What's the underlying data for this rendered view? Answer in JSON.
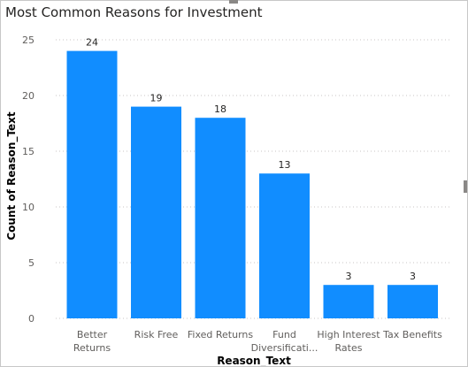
{
  "chart_data": {
    "type": "bar",
    "title": "Most Common Reasons for Investment",
    "xlabel": "Reason_Text",
    "ylabel": "Count of Reason_Text",
    "categories": [
      [
        "Better",
        "Returns"
      ],
      [
        "Risk Free"
      ],
      [
        "Fixed Returns"
      ],
      [
        "Fund",
        "Diversificati..."
      ],
      [
        "High Interest",
        "Rates"
      ],
      [
        "Tax Benefits"
      ]
    ],
    "values": [
      24,
      19,
      18,
      13,
      3,
      3
    ],
    "data_labels": [
      "24",
      "19",
      "18",
      "13",
      "3",
      "3"
    ],
    "yticks": [
      "0",
      "5",
      "10",
      "15",
      "20",
      "25"
    ],
    "ytick_values": [
      0,
      5,
      10,
      15,
      20,
      25
    ],
    "ylim": [
      0,
      25
    ],
    "grid": true,
    "legend": "none",
    "colors": {
      "bar": "#118dff",
      "grid": "#c8c6c4",
      "text": "#605e5c",
      "axis_title": "#252423"
    }
  }
}
